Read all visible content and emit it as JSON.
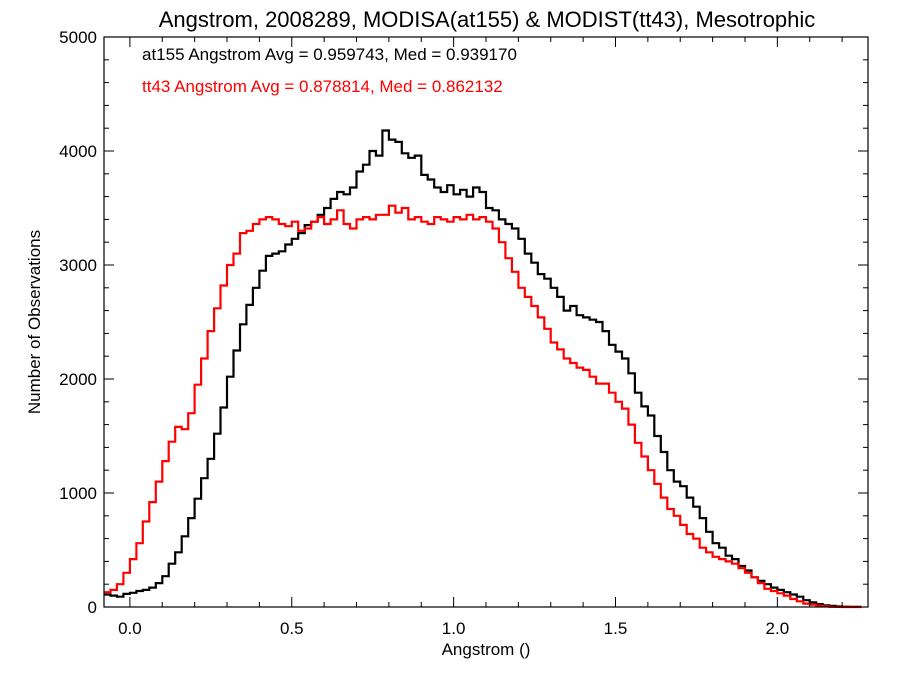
{
  "chart_data": {
    "type": "line",
    "title": "Angstrom, 2008289, MODISA(at155) & MODIST(tt43), Mesotrophic",
    "xlabel": "Angstrom ()",
    "ylabel": "Number of Observations",
    "xlim": [
      -0.08,
      2.28
    ],
    "ylim": [
      0,
      5000
    ],
    "x_ticks": [
      "0.0",
      "0.5",
      "1.0",
      "1.5",
      "2.0"
    ],
    "y_ticks": [
      "0",
      "1000",
      "2000",
      "3000",
      "4000",
      "5000"
    ],
    "step": "histogram",
    "grid": false,
    "legend": "top-left text annotations",
    "annotations": [
      {
        "text": "at155 Angstrom Avg = 0.959743, Med = 0.939170",
        "color": "#000000"
      },
      {
        "text": "tt43 Angstrom Avg = 0.878814, Med = 0.862132",
        "color": "#ff0000"
      }
    ],
    "series": [
      {
        "color": "#000000",
        "x": [
          -0.07,
          -0.05,
          -0.03,
          -0.01,
          0.01,
          0.03,
          0.05,
          0.07,
          0.09,
          0.11,
          0.13,
          0.15,
          0.17,
          0.19,
          0.21,
          0.23,
          0.25,
          0.27,
          0.29,
          0.31,
          0.33,
          0.35,
          0.37,
          0.39,
          0.41,
          0.43,
          0.45,
          0.47,
          0.49,
          0.51,
          0.53,
          0.55,
          0.57,
          0.59,
          0.61,
          0.63,
          0.65,
          0.67,
          0.69,
          0.71,
          0.73,
          0.75,
          0.77,
          0.79,
          0.81,
          0.83,
          0.85,
          0.87,
          0.89,
          0.91,
          0.93,
          0.95,
          0.97,
          0.99,
          1.01,
          1.03,
          1.05,
          1.07,
          1.09,
          1.11,
          1.13,
          1.15,
          1.17,
          1.19,
          1.21,
          1.23,
          1.25,
          1.27,
          1.29,
          1.31,
          1.33,
          1.35,
          1.37,
          1.39,
          1.41,
          1.43,
          1.45,
          1.47,
          1.49,
          1.51,
          1.53,
          1.55,
          1.57,
          1.59,
          1.61,
          1.63,
          1.65,
          1.67,
          1.69,
          1.71,
          1.73,
          1.75,
          1.77,
          1.79,
          1.81,
          1.83,
          1.85,
          1.87,
          1.89,
          1.91,
          1.93,
          1.95,
          1.97,
          1.99,
          2.01,
          2.03,
          2.05,
          2.07,
          2.09,
          2.11,
          2.13,
          2.15,
          2.17,
          2.19,
          2.21,
          2.23,
          2.25
        ],
        "values": [
          110,
          100,
          90,
          115,
          125,
          140,
          150,
          170,
          210,
          270,
          380,
          480,
          620,
          780,
          950,
          1130,
          1300,
          1520,
          1750,
          2020,
          2250,
          2480,
          2650,
          2800,
          2950,
          3080,
          3100,
          3120,
          3180,
          3230,
          3280,
          3350,
          3380,
          3440,
          3500,
          3580,
          3640,
          3620,
          3680,
          3820,
          3880,
          4000,
          3960,
          4180,
          4100,
          4080,
          3980,
          3940,
          3960,
          3790,
          3750,
          3680,
          3640,
          3700,
          3620,
          3660,
          3600,
          3680,
          3640,
          3500,
          3480,
          3400,
          3360,
          3320,
          3230,
          3100,
          3020,
          2920,
          2880,
          2800,
          2720,
          2600,
          2640,
          2560,
          2540,
          2520,
          2500,
          2420,
          2300,
          2240,
          2180,
          2050,
          1880,
          1760,
          1680,
          1500,
          1360,
          1200,
          1100,
          1060,
          960,
          880,
          780,
          660,
          560,
          520,
          450,
          420,
          360,
          320,
          260,
          230,
          200,
          170,
          150,
          130,
          110,
          90,
          60,
          40,
          25,
          15,
          10,
          5,
          3,
          2,
          1
        ]
      },
      {
        "color": "#ff0000",
        "x": [
          -0.07,
          -0.05,
          -0.03,
          -0.01,
          0.01,
          0.03,
          0.05,
          0.07,
          0.09,
          0.11,
          0.13,
          0.15,
          0.17,
          0.19,
          0.21,
          0.23,
          0.25,
          0.27,
          0.29,
          0.31,
          0.33,
          0.35,
          0.37,
          0.39,
          0.41,
          0.43,
          0.45,
          0.47,
          0.49,
          0.51,
          0.53,
          0.55,
          0.57,
          0.59,
          0.61,
          0.63,
          0.65,
          0.67,
          0.69,
          0.71,
          0.73,
          0.75,
          0.77,
          0.79,
          0.81,
          0.83,
          0.85,
          0.87,
          0.89,
          0.91,
          0.93,
          0.95,
          0.97,
          0.99,
          1.01,
          1.03,
          1.05,
          1.07,
          1.09,
          1.11,
          1.13,
          1.15,
          1.17,
          1.19,
          1.21,
          1.23,
          1.25,
          1.27,
          1.29,
          1.31,
          1.33,
          1.35,
          1.37,
          1.39,
          1.41,
          1.43,
          1.45,
          1.47,
          1.49,
          1.51,
          1.53,
          1.55,
          1.57,
          1.59,
          1.61,
          1.63,
          1.65,
          1.67,
          1.69,
          1.71,
          1.73,
          1.75,
          1.77,
          1.79,
          1.81,
          1.83,
          1.85,
          1.87,
          1.89,
          1.91,
          1.93,
          1.95,
          1.97,
          1.99,
          2.01,
          2.03,
          2.05,
          2.07,
          2.09,
          2.11,
          2.13,
          2.15,
          2.17,
          2.19,
          2.21,
          2.23,
          2.25
        ],
        "values": [
          130,
          150,
          200,
          300,
          420,
          560,
          750,
          920,
          1100,
          1280,
          1450,
          1580,
          1560,
          1700,
          1950,
          2180,
          2420,
          2620,
          2820,
          3000,
          3100,
          3280,
          3300,
          3360,
          3400,
          3420,
          3400,
          3360,
          3340,
          3380,
          3300,
          3320,
          3380,
          3420,
          3360,
          3400,
          3480,
          3360,
          3320,
          3400,
          3420,
          3400,
          3440,
          3440,
          3520,
          3460,
          3500,
          3400,
          3420,
          3380,
          3360,
          3420,
          3400,
          3380,
          3420,
          3400,
          3440,
          3400,
          3420,
          3380,
          3320,
          3200,
          3060,
          2940,
          2800,
          2720,
          2640,
          2540,
          2440,
          2320,
          2260,
          2180,
          2140,
          2100,
          2080,
          2020,
          1960,
          1960,
          1880,
          1800,
          1740,
          1600,
          1440,
          1320,
          1200,
          1080,
          960,
          860,
          800,
          720,
          640,
          600,
          520,
          480,
          440,
          420,
          400,
          380,
          340,
          300,
          260,
          210,
          160,
          140,
          120,
          100,
          70,
          50,
          30,
          20,
          10,
          5,
          2,
          1,
          0,
          0,
          0
        ]
      }
    ]
  }
}
